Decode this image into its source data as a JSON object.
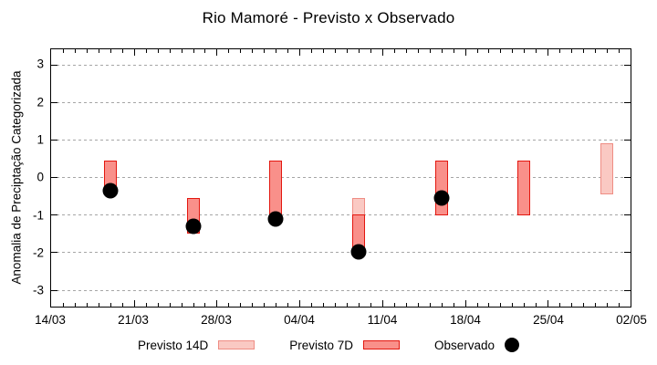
{
  "title": "Rio Mamoré - Previsto x Observado",
  "axes": {
    "y_label": "Anomalia de Preciptação Categorizada",
    "y_ticks": [
      3,
      2,
      1,
      0,
      -1,
      -2,
      -3
    ],
    "x_ticks": [
      {
        "label": "14/03",
        "day": 0
      },
      {
        "label": "21/03",
        "day": 7
      },
      {
        "label": "28/03",
        "day": 14
      },
      {
        "label": "04/04",
        "day": 21
      },
      {
        "label": "11/04",
        "day": 28
      },
      {
        "label": "18/04",
        "day": 35
      },
      {
        "label": "25/04",
        "day": 42
      },
      {
        "label": "02/05",
        "day": 49
      }
    ],
    "x_span_days": 49
  },
  "chart_data": {
    "type": "bar",
    "title": "Rio Mamoré - Previsto x Observado",
    "xlabel": "",
    "ylabel": "Anomalia de Preciptação Categorizada",
    "ylim": [
      -3.45,
      3.42
    ],
    "x_range": [
      "14/03",
      "02/05"
    ],
    "grid": "horizontal dashed gridlines at integer y values",
    "legend_position": "bottom center",
    "x_minor_ticks": "daily",
    "series": [
      {
        "name": "Previsto 14D",
        "style": "range-bar",
        "fill": "#fac9c3",
        "border": "#ef8d84",
        "bars": [
          {
            "date": "09/04",
            "day": 26,
            "from": -0.55,
            "to": -1.0
          },
          {
            "date": "30/04",
            "day": 47,
            "from": 0.9,
            "to": -0.45
          }
        ]
      },
      {
        "name": "Previsto 7D",
        "style": "range-bar",
        "fill": "#f9908a",
        "border": "#e3170f",
        "bars": [
          {
            "date": "19/03",
            "day": 5,
            "from": 0.45,
            "to": -0.25
          },
          {
            "date": "26/03",
            "day": 12,
            "from": -0.55,
            "to": -1.5
          },
          {
            "date": "02/04",
            "day": 19,
            "from": 0.45,
            "to": -1.0
          },
          {
            "date": "09/04",
            "day": 26,
            "from": -1.0,
            "to": -1.9
          },
          {
            "date": "16/04",
            "day": 33,
            "from": 0.45,
            "to": -1.0
          },
          {
            "date": "23/04",
            "day": 40,
            "from": 0.45,
            "to": -1.0
          }
        ]
      },
      {
        "name": "Observado",
        "style": "point",
        "color": "#000000",
        "points": [
          {
            "date": "19/03",
            "day": 5,
            "value": -0.35
          },
          {
            "date": "26/03",
            "day": 12,
            "value": -1.3
          },
          {
            "date": "02/04",
            "day": 19,
            "value": -1.1
          },
          {
            "date": "09/04",
            "day": 26,
            "value": -2.0
          },
          {
            "date": "16/04",
            "day": 33,
            "value": -0.55
          }
        ]
      }
    ]
  },
  "legend": {
    "gridline_color": "#a6a6a6"
  }
}
